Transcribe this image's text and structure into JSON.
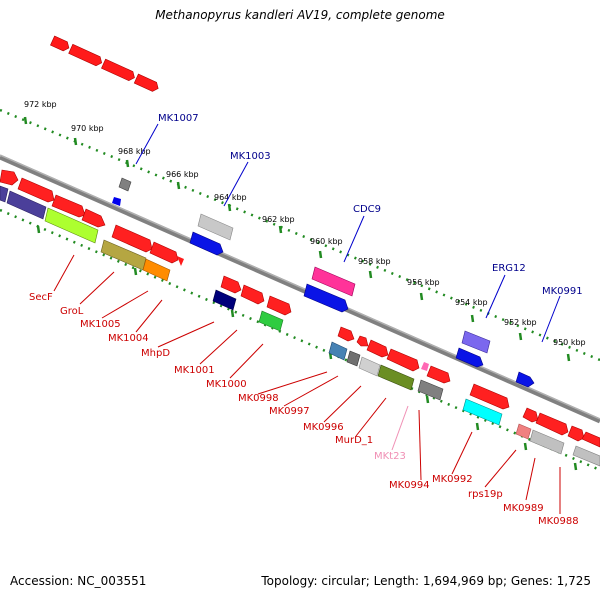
{
  "title": "Methanopyrus kandleri AV19, complete genome",
  "footer": {
    "accession": "Accession: NC_003551",
    "summary": "Topology: circular; Length: 1,694,969 bp; Genes: 1,725"
  },
  "colors": {
    "forward_label": "#00008b",
    "reverse_label": "#cc0000",
    "rna_label": "#f08fb4",
    "scale_ticks": "#228b22",
    "backbone": "#808080"
  },
  "scale_labels": [
    "972 kbp",
    "970 kbp",
    "968 kbp",
    "966 kbp",
    "964 kbp",
    "962 kbp",
    "960 kbp",
    "958 kbp",
    "956 kbp",
    "954 kbp",
    "952 kbp",
    "950 kbp"
  ],
  "forward_labels": [
    "MK1007",
    "MK1003",
    "CDC9",
    "ERG12",
    "MK0991"
  ],
  "reverse_labels": [
    "SecF",
    "GroL",
    "MK1005",
    "MK1004",
    "MhpD",
    "MK1001",
    "MK1000",
    "MK0998",
    "MK0997",
    "MK0996",
    "MurD_1",
    "MKt23",
    "MK0994",
    "MK0992",
    "rps19p",
    "MK0989",
    "MK0988"
  ]
}
